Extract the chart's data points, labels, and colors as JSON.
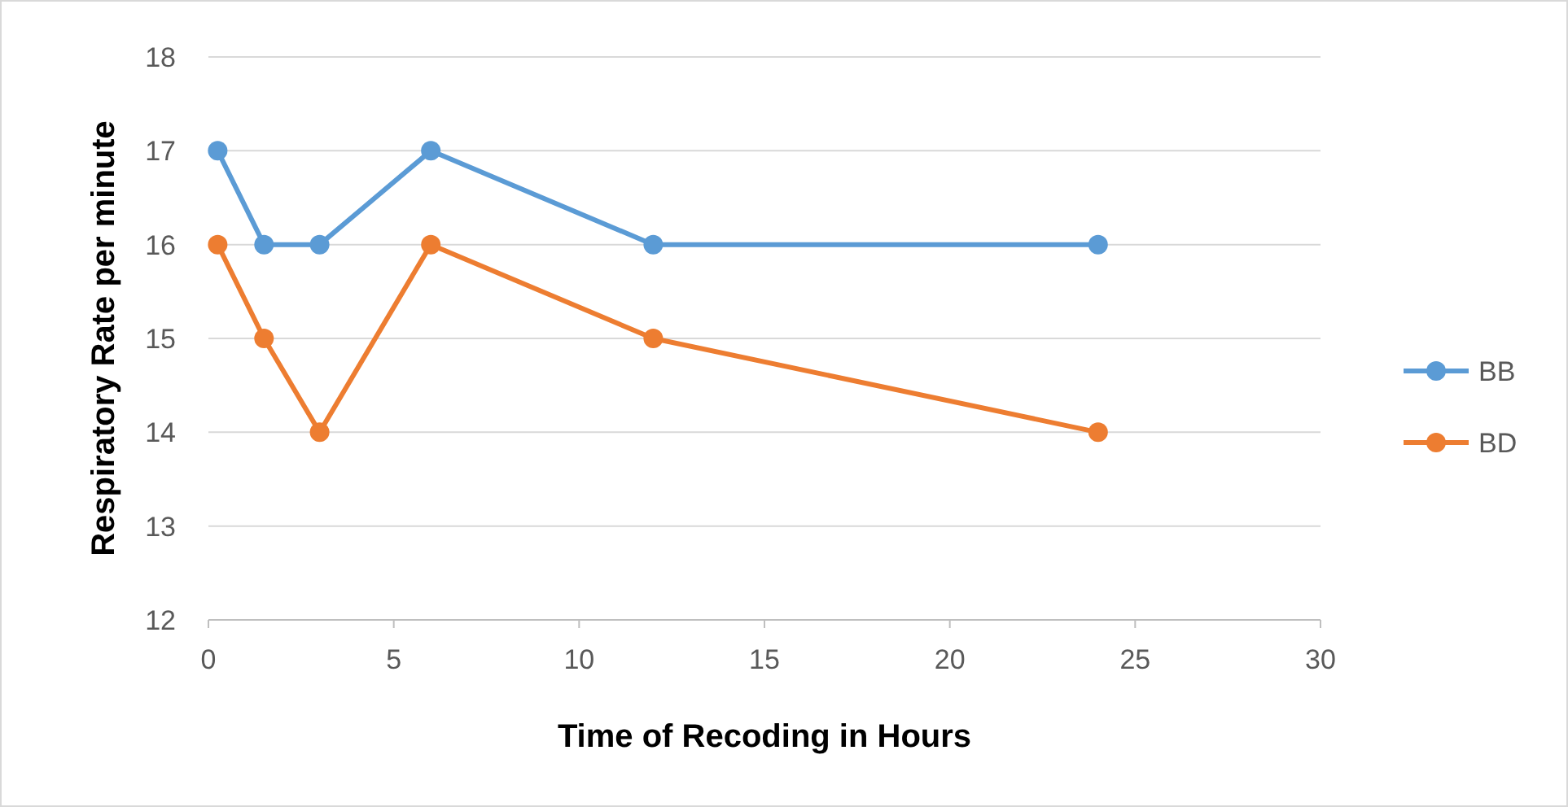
{
  "chart_data": {
    "type": "line",
    "xlabel": "Time of Recoding in Hours",
    "ylabel": "Respiratory Rate per minute",
    "x": [
      0.25,
      1.5,
      3,
      6,
      12,
      24
    ],
    "series": [
      {
        "name": "BB",
        "color": "#5b9bd5",
        "values": [
          17,
          16,
          16,
          17,
          16,
          16
        ]
      },
      {
        "name": "BD",
        "color": "#ed7d31",
        "values": [
          16,
          15,
          14,
          16,
          15,
          14
        ]
      }
    ],
    "xlim": [
      0,
      30
    ],
    "xticks": [
      0,
      5,
      10,
      15,
      20,
      25,
      30
    ],
    "ylim": [
      12,
      18
    ],
    "yticks": [
      12,
      13,
      14,
      15,
      16,
      17,
      18
    ],
    "grid": "y",
    "legend": "right",
    "marker": "circle",
    "line_style": "solid"
  }
}
